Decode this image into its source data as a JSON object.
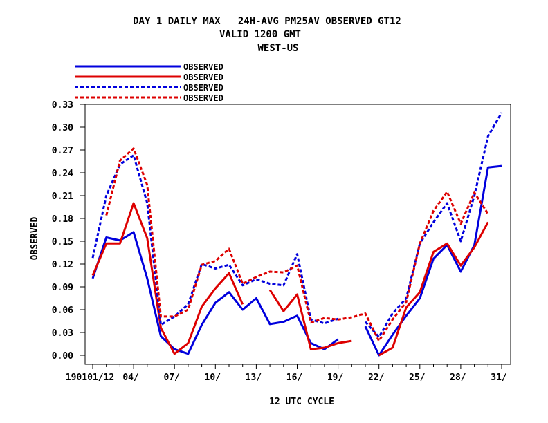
{
  "chart_data": {
    "type": "line",
    "title_lines": [
      "DAY 1 DAILY MAX   24H-AVG PM25AV OBSERVED GT12",
      "VALID 1200 GMT",
      "WEST-US"
    ],
    "xlabel": "12 UTC CYCLE",
    "ylabel": "OBSERVED",
    "ylim": [
      0,
      0.33
    ],
    "yticks": [
      "0.00",
      "0.03",
      "0.06",
      "0.09",
      "0.12",
      "0.15",
      "0.18",
      "0.21",
      "0.24",
      "0.27",
      "0.30",
      "0.33"
    ],
    "x": [
      1,
      2,
      3,
      4,
      5,
      6,
      7,
      8,
      9,
      10,
      11,
      12,
      13,
      14,
      15,
      16,
      17,
      18,
      19,
      20,
      21,
      22,
      23,
      24,
      25,
      26,
      27,
      28,
      29,
      30,
      31
    ],
    "xticks": [
      {
        "x": 1,
        "label": "190101/12"
      },
      {
        "x": 4,
        "label": "04/"
      },
      {
        "x": 7,
        "label": "07/"
      },
      {
        "x": 10,
        "label": "10/"
      },
      {
        "x": 13,
        "label": "13/"
      },
      {
        "x": 16,
        "label": "16/"
      },
      {
        "x": 19,
        "label": "19/"
      },
      {
        "x": 22,
        "label": "22/"
      },
      {
        "x": 25,
        "label": "25/"
      },
      {
        "x": 28,
        "label": "28/"
      },
      {
        "x": 31,
        "label": "31/"
      }
    ],
    "legend_position": "top-left",
    "grid": false,
    "series": [
      {
        "name": "OBSERVED",
        "color": "#0000dd",
        "style": "solid",
        "values": [
          0.101,
          0.155,
          0.151,
          0.162,
          0.101,
          0.025,
          0.008,
          0.002,
          0.04,
          0.069,
          0.083,
          0.06,
          0.075,
          0.041,
          0.044,
          0.052,
          0.016,
          0.008,
          0.021,
          null,
          0.038,
          0.0,
          0.027,
          0.052,
          0.075,
          0.127,
          0.145,
          0.11,
          0.145,
          0.247,
          0.249
        ]
      },
      {
        "name": "OBSERVED",
        "color": "#dd0000",
        "style": "solid",
        "values": [
          0.105,
          0.147,
          0.147,
          0.2,
          0.154,
          0.036,
          0.002,
          0.016,
          0.064,
          0.088,
          0.108,
          0.067,
          null,
          0.086,
          0.058,
          0.08,
          0.008,
          0.01,
          0.016,
          0.019,
          null,
          0.0,
          0.01,
          0.063,
          0.083,
          0.136,
          0.147,
          0.118,
          0.142,
          0.175,
          null
        ]
      },
      {
        "name": "OBSERVED",
        "color": "#0000dd",
        "style": "dashed",
        "values": [
          0.128,
          0.21,
          0.251,
          0.263,
          0.2,
          0.04,
          0.051,
          0.067,
          0.12,
          0.114,
          0.119,
          0.092,
          0.1,
          0.094,
          0.092,
          0.133,
          0.047,
          0.042,
          0.048,
          null,
          0.044,
          0.024,
          0.055,
          0.075,
          0.147,
          0.175,
          0.2,
          0.15,
          0.21,
          0.288,
          0.319
        ]
      },
      {
        "name": "OBSERVED",
        "color": "#dd0000",
        "style": "dashed",
        "values": [
          null,
          0.184,
          0.256,
          0.272,
          0.224,
          0.051,
          0.051,
          0.06,
          0.119,
          0.124,
          0.14,
          0.094,
          0.103,
          0.11,
          0.109,
          0.118,
          0.043,
          0.049,
          0.047,
          0.05,
          0.055,
          0.019,
          0.047,
          0.07,
          0.147,
          0.19,
          0.215,
          0.173,
          0.214,
          0.186,
          null
        ]
      }
    ]
  }
}
